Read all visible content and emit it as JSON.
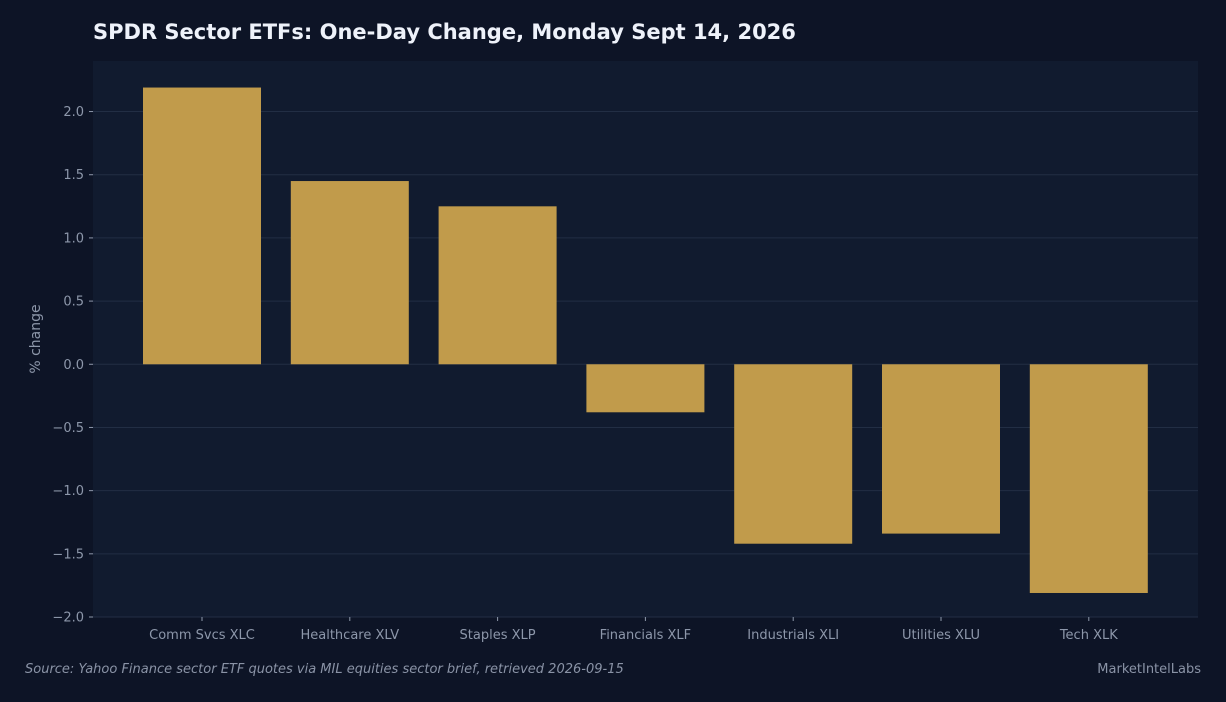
{
  "colors": {
    "background": "#0d1426",
    "plot_background": "#111b2f",
    "bar": "#c19b4b",
    "grid": "#222e44",
    "text": "#8d97aa",
    "title": "#eef2fa"
  },
  "footer": {
    "source": "Source: Yahoo Finance sector ETF quotes via MIL equities sector brief, retrieved 2026-09-15",
    "brand": "MarketIntelLabs"
  },
  "chart_data": {
    "type": "bar",
    "title": "SPDR Sector ETFs: One-Day Change, Monday Sept 14, 2026",
    "xlabel": "",
    "ylabel": "% change",
    "categories": [
      "Comm Svcs XLC",
      "Healthcare XLV",
      "Staples XLP",
      "Financials XLF",
      "Industrials XLI",
      "Utilities XLU",
      "Tech XLK"
    ],
    "values": [
      2.19,
      1.45,
      1.25,
      -0.38,
      -1.42,
      -1.34,
      -1.81
    ],
    "ylim": [
      -2.0,
      2.4
    ],
    "yticks": [
      2.0,
      1.5,
      1.0,
      0.5,
      0.0,
      -0.5,
      -1.0,
      -1.5,
      -2.0
    ],
    "ytick_labels": [
      "2.0",
      "1.5",
      "1.0",
      "0.5",
      "0.0",
      "−0.5",
      "−1.0",
      "−1.5",
      "−2.0"
    ],
    "grid": true,
    "legend": "none"
  }
}
